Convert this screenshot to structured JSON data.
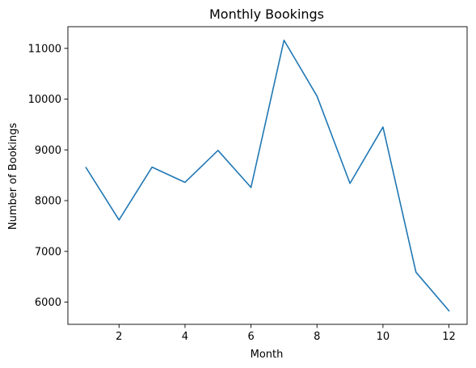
{
  "chart_data": {
    "type": "line",
    "title": "Monthly Bookings",
    "xlabel": "Month",
    "ylabel": "Number of Bookings",
    "x": [
      1,
      2,
      3,
      4,
      5,
      6,
      7,
      8,
      9,
      10,
      11,
      12
    ],
    "series": [
      {
        "values": [
          8650,
          7620,
          8660,
          8360,
          8990,
          8260,
          11160,
          10060,
          8340,
          9450,
          6590,
          5830
        ],
        "color": "#1f77b4"
      }
    ],
    "xlim": [
      0.45,
      12.55
    ],
    "ylim": [
      5563,
      11427
    ],
    "xticks": [
      2,
      4,
      6,
      8,
      10,
      12
    ],
    "yticks": [
      6000,
      7000,
      8000,
      9000,
      10000,
      11000
    ],
    "grid": false,
    "legend": "none"
  }
}
